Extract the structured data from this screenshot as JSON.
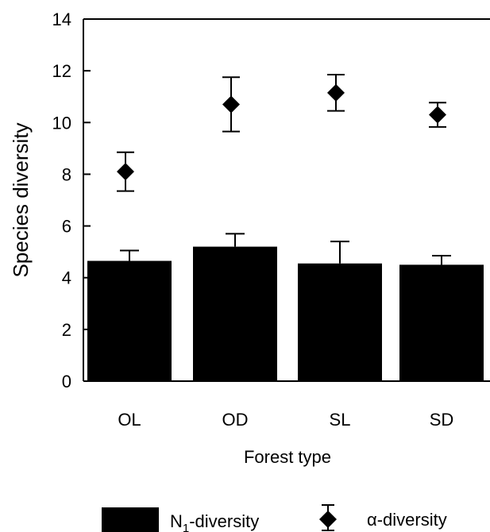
{
  "chart_data": {
    "type": "bar",
    "title": "",
    "xlabel": "Forest type",
    "ylabel": "Species diversity",
    "categories": [
      "OL",
      "OD",
      "SL",
      "SD"
    ],
    "ylim": [
      0,
      14
    ],
    "yticks": [
      "0",
      "2",
      "4",
      "6",
      "8",
      "10",
      "12",
      "14"
    ],
    "grid": false,
    "legend_position": "bottom",
    "series": [
      {
        "name": "N1-diversity",
        "legend_main": "N",
        "legend_sub": "1",
        "legend_suffix": "-diversity",
        "kind": "bar",
        "color": "#000000",
        "values": [
          4.65,
          5.2,
          4.55,
          4.5
        ],
        "error_upper": [
          0.4,
          0.5,
          0.85,
          0.35
        ]
      },
      {
        "name": "α-diversity",
        "kind": "marker",
        "marker": "diamond",
        "color": "#000000",
        "values": [
          8.1,
          10.7,
          11.15,
          10.3
        ],
        "error": [
          0.75,
          1.05,
          0.7,
          0.47
        ]
      }
    ]
  }
}
